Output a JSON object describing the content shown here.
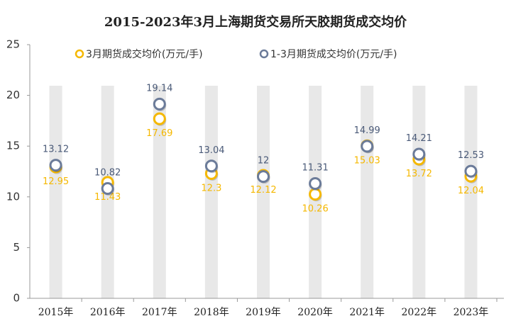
{
  "chart_data": {
    "type": "dot",
    "title": "2015-2023年3月上海期货交易所天胶期货成交均价",
    "categories": [
      "2015年",
      "2016年",
      "2017年",
      "2018年",
      "2019年",
      "2020年",
      "2021年",
      "2022年",
      "2023年"
    ],
    "series": [
      {
        "name": "3月期货成交均价(万元/手)",
        "color": "#f5b800",
        "values": [
          12.95,
          11.43,
          17.69,
          12.3,
          12.12,
          10.26,
          15.03,
          13.72,
          12.04
        ]
      },
      {
        "name": "1-3月期货成交均价(万元/手)",
        "color": "#6b7b99",
        "values": [
          13.12,
          10.82,
          19.14,
          13.04,
          12,
          11.31,
          14.99,
          14.21,
          12.53
        ]
      }
    ],
    "ylim": [
      0,
      25
    ],
    "yticks": [
      0,
      5,
      10,
      15,
      20,
      25
    ]
  }
}
